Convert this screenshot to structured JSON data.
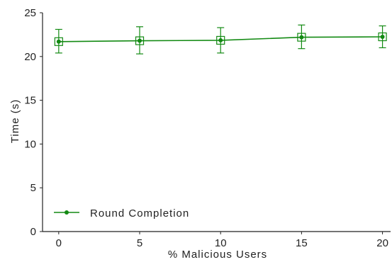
{
  "chart_data": {
    "type": "line",
    "title": "",
    "xlabel": "% Malicious Users",
    "ylabel": "Time (s)",
    "xlim": [
      -1,
      20.5
    ],
    "ylim": [
      0,
      25
    ],
    "xticks": [
      "0",
      "5",
      "10",
      "15",
      "20"
    ],
    "yticks": [
      "0",
      "5",
      "10",
      "15",
      "20",
      "25"
    ],
    "grid": false,
    "legend_position": "bottom-left",
    "color": "#138a13",
    "series": [
      {
        "name": "Round Completion",
        "x": [
          0,
          5,
          10,
          15,
          20
        ],
        "y": [
          21.7,
          21.8,
          21.85,
          22.2,
          22.25
        ],
        "yerr_low": [
          20.4,
          20.3,
          20.4,
          20.9,
          21.0
        ],
        "yerr_high": [
          23.1,
          23.4,
          23.3,
          23.6,
          23.5
        ]
      }
    ]
  }
}
